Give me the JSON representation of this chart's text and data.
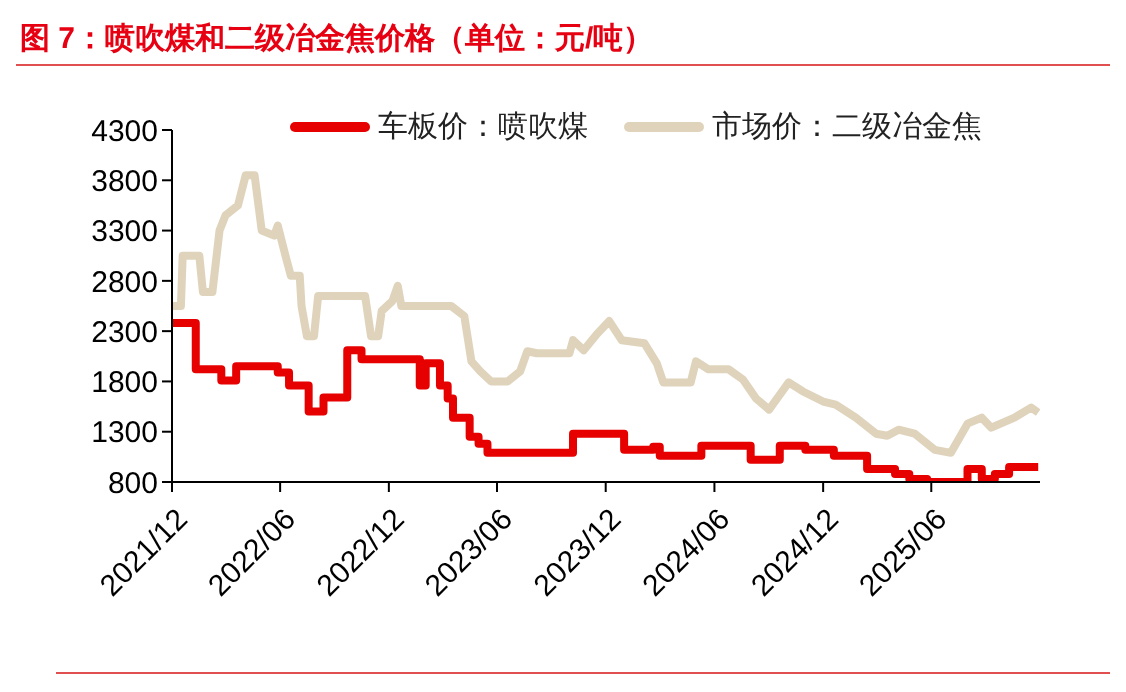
{
  "chart_data": {
    "type": "line",
    "title": "图 7：喷吹煤和二级冶金焦价格（单位：元/吨）",
    "legend": "top",
    "marker": "none",
    "line_style": "solid",
    "xlim": [
      "2021-12-01",
      "2025-12-01"
    ],
    "xticks": [
      {
        "value": "2021-12-01",
        "label": "2021/12"
      },
      {
        "value": "2022-06-01",
        "label": "2022/06"
      },
      {
        "value": "2022-12-01",
        "label": "2022/12"
      },
      {
        "value": "2023-06-01",
        "label": "2023/06"
      },
      {
        "value": "2023-12-01",
        "label": "2023/12"
      },
      {
        "value": "2024-06-01",
        "label": "2024/06"
      },
      {
        "value": "2024-12-01",
        "label": "2024/12"
      },
      {
        "value": "2025-06-01",
        "label": "2025/06"
      }
    ],
    "ylim": [
      800,
      4300
    ],
    "yticks": [
      800,
      1300,
      1800,
      2300,
      2800,
      3300,
      3800,
      4300
    ],
    "series": [
      {
        "name": "车板价：喷吹煤",
        "type": "step",
        "color": "#e60000",
        "x": [
          "2021-12-01",
          "2022-01-10",
          "2022-02-22",
          "2022-03-19",
          "2022-05-28",
          "2022-06-16",
          "2022-07-19",
          "2022-08-13",
          "2022-09-22",
          "2022-10-16",
          "2023-01-22",
          "2023-02-01",
          "2023-02-25",
          "2023-03-10",
          "2023-03-19",
          "2023-04-16",
          "2023-05-01",
          "2023-05-16",
          "2023-10-07",
          "2024-01-01",
          "2024-02-19",
          "2024-03-01",
          "2024-05-10",
          "2024-08-01",
          "2024-09-19",
          "2024-11-01",
          "2024-12-19",
          "2025-02-13",
          "2025-04-01",
          "2025-04-25",
          "2025-05-25",
          "2025-08-01",
          "2025-08-25",
          "2025-09-16",
          "2025-10-10",
          "2025-11-28"
        ],
        "values": [
          2380,
          1920,
          1810,
          1950,
          1890,
          1760,
          1500,
          1640,
          2110,
          2020,
          1760,
          1980,
          1760,
          1630,
          1440,
          1250,
          1180,
          1090,
          1280,
          1120,
          1150,
          1060,
          1160,
          1020,
          1160,
          1120,
          1060,
          930,
          880,
          830,
          800,
          930,
          830,
          880,
          950,
          950
        ]
      },
      {
        "name": "市场价：二级冶金焦",
        "type": "line",
        "color": "#dfd3bc",
        "x": [
          "2021-12-01",
          "2021-12-16",
          "2021-12-19",
          "2022-01-16",
          "2022-01-22",
          "2022-02-07",
          "2022-02-19",
          "2022-03-01",
          "2022-03-22",
          "2022-04-04",
          "2022-04-19",
          "2022-05-01",
          "2022-05-22",
          "2022-05-28",
          "2022-06-10",
          "2022-06-19",
          "2022-07-04",
          "2022-07-07",
          "2022-07-16",
          "2022-07-28",
          "2022-08-04",
          "2022-10-22",
          "2022-11-01",
          "2022-11-13",
          "2022-11-19",
          "2022-12-07",
          "2022-12-16",
          "2022-12-22",
          "2023-03-16",
          "2023-04-07",
          "2023-04-19",
          "2023-05-04",
          "2023-05-22",
          "2023-06-19",
          "2023-07-10",
          "2023-07-22",
          "2023-08-07",
          "2023-10-01",
          "2023-10-07",
          "2023-10-25",
          "2023-11-16",
          "2023-12-07",
          "2023-12-28",
          "2024-02-04",
          "2024-02-25",
          "2024-03-07",
          "2024-04-22",
          "2024-05-01",
          "2024-05-22",
          "2024-06-25",
          "2024-07-19",
          "2024-08-10",
          "2024-09-01",
          "2024-10-04",
          "2024-10-28",
          "2024-12-01",
          "2024-12-22",
          "2025-01-25",
          "2025-02-28",
          "2025-03-19",
          "2025-04-07",
          "2025-05-04",
          "2025-06-07",
          "2025-07-04",
          "2025-08-01",
          "2025-08-25",
          "2025-09-10",
          "2025-10-19",
          "2025-11-16",
          "2025-11-28"
        ],
        "values": [
          2550,
          2550,
          3050,
          3050,
          2690,
          2690,
          3300,
          3450,
          3550,
          3850,
          3850,
          3300,
          3250,
          3350,
          3050,
          2850,
          2850,
          2550,
          2250,
          2250,
          2650,
          2650,
          2250,
          2250,
          2500,
          2600,
          2750,
          2550,
          2550,
          2450,
          2000,
          1900,
          1800,
          1800,
          1900,
          2100,
          2080,
          2080,
          2210,
          2110,
          2270,
          2400,
          2210,
          2180,
          1980,
          1790,
          1790,
          2000,
          1920,
          1920,
          1820,
          1630,
          1520,
          1790,
          1700,
          1600,
          1570,
          1440,
          1280,
          1260,
          1320,
          1280,
          1120,
          1090,
          1380,
          1440,
          1340,
          1440,
          1540,
          1490
        ]
      }
    ]
  }
}
